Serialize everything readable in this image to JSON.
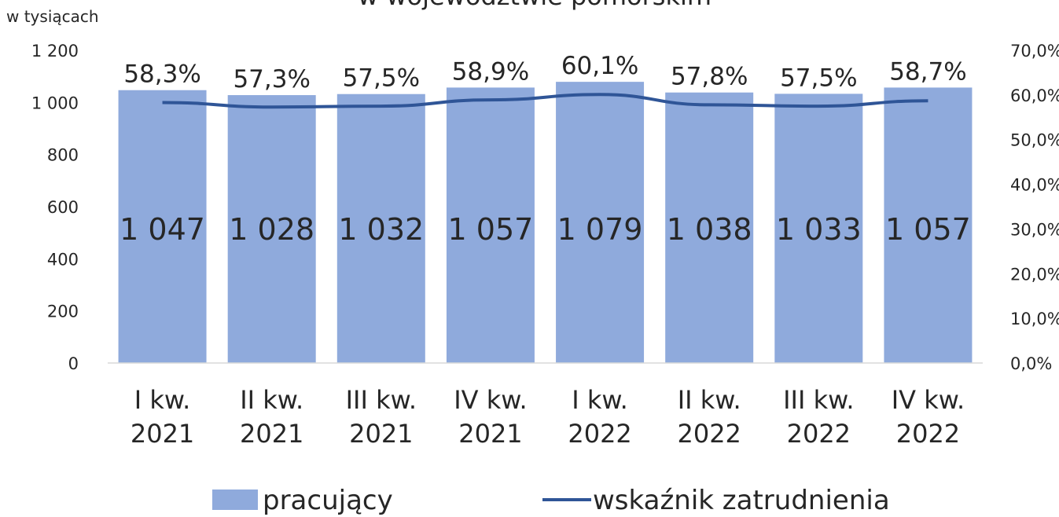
{
  "chart_data": {
    "type": "bar_line",
    "title": "w województwie pomorskim",
    "y_label": "w tysiącach",
    "categories": [
      [
        "I kw.",
        "2021"
      ],
      [
        "II kw.",
        "2021"
      ],
      [
        "III kw.",
        "2021"
      ],
      [
        "IV kw.",
        "2021"
      ],
      [
        "I kw.",
        "2022"
      ],
      [
        "II kw.",
        "2022"
      ],
      [
        "III kw.",
        "2022"
      ],
      [
        "IV kw.",
        "2022"
      ]
    ],
    "series": [
      {
        "name": "pracujący",
        "color": "#8faadc",
        "kind": "bar",
        "values": [
          1047,
          1028,
          1032,
          1057,
          1079,
          1038,
          1033,
          1057
        ],
        "value_labels": [
          "1 047",
          "1 028",
          "1 032",
          "1 057",
          "1 079",
          "1 038",
          "1 033",
          "1 057"
        ]
      },
      {
        "name": "wskaźnik zatrudnienia",
        "color": "#2f5597",
        "kind": "line",
        "axis": "y2",
        "values": [
          58.3,
          57.3,
          57.5,
          58.9,
          60.1,
          57.8,
          57.5,
          58.7
        ],
        "value_labels": [
          "58,3%",
          "57,3%",
          "57,5%",
          "58,9%",
          "60,1%",
          "57,8%",
          "57,5%",
          "58,7%"
        ]
      }
    ],
    "ylim": [
      0,
      1200
    ],
    "yticks": [
      0,
      200,
      400,
      600,
      800,
      {
        "value": 1000,
        "label": "1 000"
      },
      {
        "value": 1200,
        "label": "1 200"
      }
    ],
    "y2lim": [
      0,
      70
    ],
    "y2ticks": [
      {
        "value": 0,
        "label": "0,0%"
      },
      {
        "value": 10,
        "label": "10,0%"
      },
      {
        "value": 20,
        "label": "20,0%"
      },
      {
        "value": 30,
        "label": "30,0%"
      },
      {
        "value": 40,
        "label": "40,0%"
      },
      {
        "value": 50,
        "label": "50,0%"
      },
      {
        "value": 60,
        "label": "60,0%"
      },
      {
        "value": 70,
        "label": "70,0%"
      }
    ],
    "grid": false,
    "legend": "bottom"
  }
}
